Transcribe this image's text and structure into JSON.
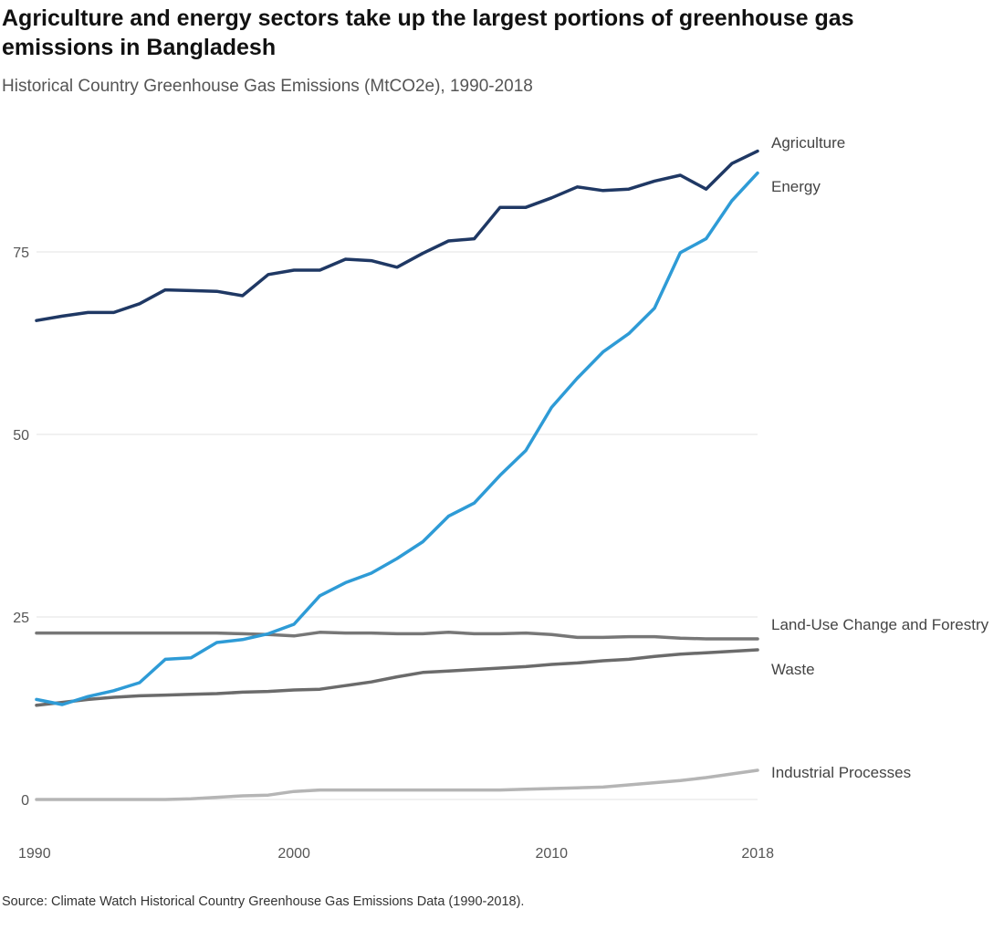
{
  "title": "Agriculture and energy sectors take up the largest portions of greenhouse gas emissions in Bangladesh",
  "subtitle": "Historical Country Greenhouse Gas Emissions (MtCO2e), 1990-2018",
  "source": "Source: Climate Watch Historical Country Greenhouse Gas Emissions Data (1990-2018).",
  "chart_data": {
    "type": "line",
    "title": "Agriculture and energy sectors take up the largest portions of greenhouse gas emissions in Bangladesh",
    "subtitle": "Historical Country Greenhouse Gas Emissions (MtCO2e), 1990-2018",
    "xlabel": "",
    "ylabel": "",
    "x": [
      1990,
      1991,
      1992,
      1993,
      1994,
      1995,
      1996,
      1997,
      1998,
      1999,
      2000,
      2001,
      2002,
      2003,
      2004,
      2005,
      2006,
      2007,
      2008,
      2009,
      2010,
      2011,
      2012,
      2013,
      2014,
      2015,
      2016,
      2017,
      2018
    ],
    "xlim": [
      1990,
      2018
    ],
    "ylim": [
      0,
      90
    ],
    "x_ticks": [
      "1990",
      "2000",
      "2010",
      "2018"
    ],
    "y_ticks": [
      "0",
      "25",
      "50",
      "75"
    ],
    "grid": "horizontal",
    "legend": "direct labels at right end of lines",
    "series": [
      {
        "name": "Agriculture",
        "color": "#1f3864",
        "values": [
          65.6,
          66.2,
          66.7,
          66.7,
          67.9,
          69.8,
          69.7,
          69.6,
          69.0,
          71.9,
          72.5,
          72.5,
          74.0,
          73.8,
          72.9,
          74.8,
          76.5,
          76.8,
          81.1,
          81.1,
          82.4,
          83.9,
          83.4,
          83.6,
          84.7,
          85.5,
          83.6,
          87.1,
          88.8
        ]
      },
      {
        "name": "Energy",
        "color": "#2e9bd6",
        "values": [
          13.7,
          13.0,
          14.1,
          14.9,
          16.0,
          19.2,
          19.4,
          21.5,
          21.9,
          22.7,
          24.0,
          27.9,
          29.7,
          31.0,
          33.0,
          35.3,
          38.8,
          40.6,
          44.4,
          47.8,
          53.7,
          57.7,
          61.3,
          63.8,
          67.3,
          74.9,
          76.8,
          82.0,
          85.8
        ]
      },
      {
        "name": "Land-Use Change and Forestry",
        "color": "#777777",
        "values": [
          22.8,
          22.8,
          22.8,
          22.8,
          22.8,
          22.8,
          22.8,
          22.8,
          22.7,
          22.6,
          22.4,
          22.9,
          22.8,
          22.8,
          22.7,
          22.7,
          22.9,
          22.7,
          22.7,
          22.8,
          22.6,
          22.2,
          22.2,
          22.3,
          22.3,
          22.1,
          22.0,
          22.0,
          22.0
        ]
      },
      {
        "name": "Waste",
        "color": "#6b6b6b",
        "values": [
          12.9,
          13.3,
          13.7,
          14.0,
          14.2,
          14.3,
          14.4,
          14.5,
          14.7,
          14.8,
          15.0,
          15.1,
          15.6,
          16.1,
          16.8,
          17.4,
          17.6,
          17.8,
          18.0,
          18.2,
          18.5,
          18.7,
          19.0,
          19.2,
          19.6,
          19.9,
          20.1,
          20.3,
          20.5
        ]
      },
      {
        "name": "Industrial Processes",
        "color": "#b5b5b5",
        "values": [
          0.0,
          0.0,
          0.0,
          0.0,
          0.0,
          0.0,
          0.1,
          0.3,
          0.5,
          0.6,
          1.1,
          1.3,
          1.3,
          1.3,
          1.3,
          1.3,
          1.3,
          1.3,
          1.3,
          1.4,
          1.5,
          1.6,
          1.7,
          2.0,
          2.3,
          2.6,
          3.0,
          3.5,
          4.0
        ]
      }
    ]
  }
}
